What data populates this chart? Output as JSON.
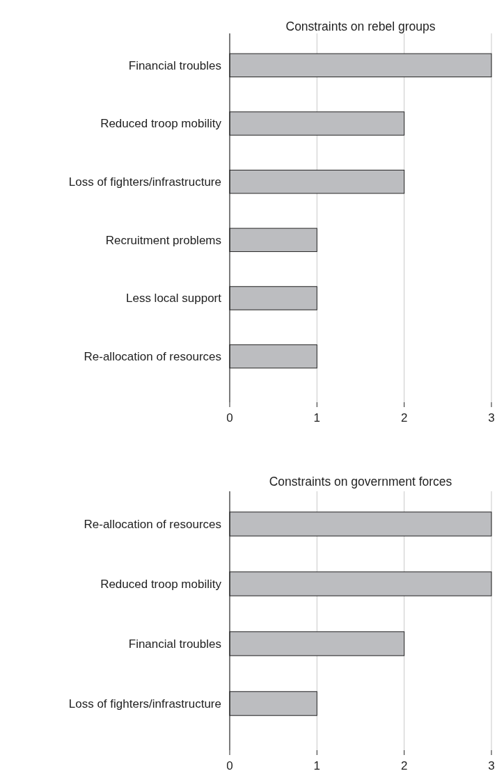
{
  "chart_data": [
    {
      "type": "bar",
      "orientation": "horizontal",
      "title": "Constraints on rebel groups",
      "categories": [
        "Financial troubles",
        "Reduced troop mobility",
        "Loss of fighters/infrastructure",
        "Recruitment problems",
        "Less local support",
        "Re-allocation of resources"
      ],
      "values": [
        3,
        2,
        2,
        1,
        1,
        1
      ],
      "color": "#bcbdc0",
      "xlim": [
        0,
        3
      ],
      "xticks": [
        0,
        1,
        2,
        3
      ],
      "grid": "x"
    },
    {
      "type": "bar",
      "orientation": "horizontal",
      "title": "Constraints on government forces",
      "categories": [
        "Re-allocation of resources",
        "Reduced troop mobility",
        "Financial troubles",
        "Loss of fighters/infrastructure"
      ],
      "values": [
        3,
        3,
        2,
        1
      ],
      "color": "#bcbdc0",
      "xlim": [
        0,
        3
      ],
      "xticks": [
        0,
        1,
        2,
        3
      ],
      "grid": "x"
    }
  ]
}
